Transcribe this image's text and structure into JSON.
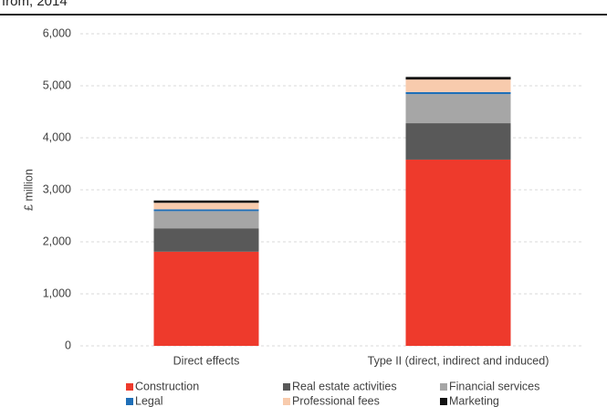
{
  "chart_data": {
    "type": "stacked_bar",
    "title": "from, 2014",
    "y_label": "£ million",
    "categories": [
      "Direct effects",
      "Type II (direct, indirect and induced)"
    ],
    "series": [
      {
        "name": "Construction",
        "color": "#ee3a2c",
        "values": [
          1810,
          3580
        ]
      },
      {
        "name": "Real estate activities",
        "color": "#595959",
        "values": [
          450,
          700
        ]
      },
      {
        "name": "Financial services",
        "color": "#a6a6a6",
        "values": [
          330,
          560
        ]
      },
      {
        "name": "Legal",
        "color": "#1f6fb8",
        "values": [
          35,
          40
        ]
      },
      {
        "name": "Professional fees",
        "color": "#f8cbad",
        "values": [
          125,
          240
        ]
      },
      {
        "name": "Marketing",
        "color": "#111111",
        "values": [
          45,
          50
        ]
      }
    ],
    "ylim": [
      0,
      6000
    ],
    "yticks": [
      0,
      {
        "value": 1000,
        "label": "1,000"
      },
      {
        "value": 2000,
        "label": "2,000"
      },
      {
        "value": 3000,
        "label": "3,000"
      },
      {
        "value": 4000,
        "label": "4,000"
      },
      {
        "value": 5000,
        "label": "5,000"
      },
      {
        "value": 6000,
        "label": "6,000"
      }
    ],
    "grid": true
  }
}
